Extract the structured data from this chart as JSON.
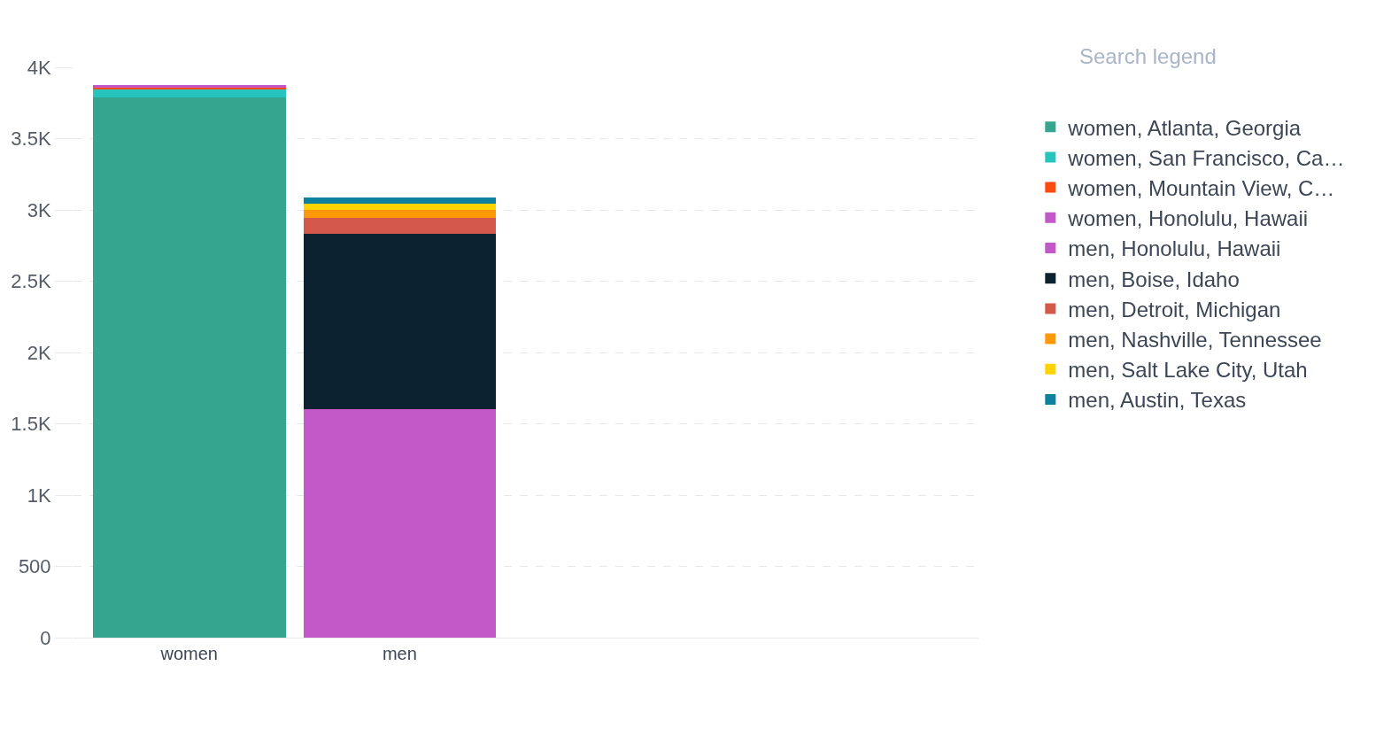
{
  "chart_data": {
    "type": "bar",
    "stacked": true,
    "categories": [
      "women",
      "men"
    ],
    "series": [
      {
        "name": "women, Atlanta, Georgia",
        "color": "#36a58f",
        "values": [
          3790,
          null
        ]
      },
      {
        "name": "women, San Francisco, Ca…",
        "color": "#27c4bd",
        "values": [
          60,
          null
        ]
      },
      {
        "name": "women, Mountain View, C…",
        "color": "#ff4a11",
        "values": [
          10,
          null
        ]
      },
      {
        "name": "women, Honolulu, Hawaii",
        "color": "#c257c8",
        "values": [
          15,
          null
        ]
      },
      {
        "name": "men, Honolulu, Hawaii",
        "color": "#c257c8",
        "values": [
          null,
          1600
        ]
      },
      {
        "name": "men, Boise, Idaho",
        "color": "#0c2230",
        "values": [
          null,
          1235
        ]
      },
      {
        "name": "men, Detroit, Michigan",
        "color": "#d4594a",
        "values": [
          null,
          110
        ]
      },
      {
        "name": "men, Nashville, Tennessee",
        "color": "#ff9806",
        "values": [
          null,
          58
        ]
      },
      {
        "name": "men, Salt Lake City, Utah",
        "color": "#ffd300",
        "values": [
          null,
          41
        ]
      },
      {
        "name": "men, Austin, Texas",
        "color": "#0e819e",
        "values": [
          null,
          42
        ]
      }
    ],
    "ylim": [
      0,
      4000
    ],
    "yticks": [
      0,
      500,
      {
        "value": 1000,
        "label": "1K"
      },
      {
        "value": 1500,
        "label": "1.5K"
      },
      {
        "value": 2000,
        "label": "2K"
      },
      {
        "value": 2500,
        "label": "2.5K"
      },
      {
        "value": 3000,
        "label": "3K"
      },
      {
        "value": 3500,
        "label": "3.5K"
      },
      {
        "value": 4000,
        "label": "4K"
      }
    ],
    "grid": "y",
    "legend": "right",
    "annotations": [
      "Search legend"
    ]
  }
}
